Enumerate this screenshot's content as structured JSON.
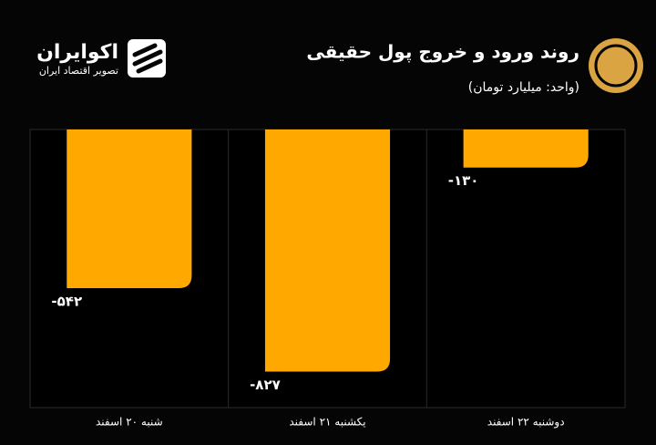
{
  "chart_data": {
    "type": "bar",
    "title": "روند ورود و خروج پول حقیقی",
    "subtitle": "(واحد: میلیارد تومان)",
    "brand": "اکوایران",
    "brand_tagline": "تصویر اقتصاد ایران",
    "categories": [
      "شنبه ۲۰ اسفند",
      "یکشنبه ۲۱ اسفند",
      "دوشنبه ۲۲ اسفند"
    ],
    "values": [
      -542,
      -827,
      -130
    ],
    "value_labels": [
      "-۵۴۲",
      "-۸۲۷",
      "-۱۳۰"
    ],
    "color": "#ffa800",
    "ylim": [
      -950,
      0
    ]
  }
}
